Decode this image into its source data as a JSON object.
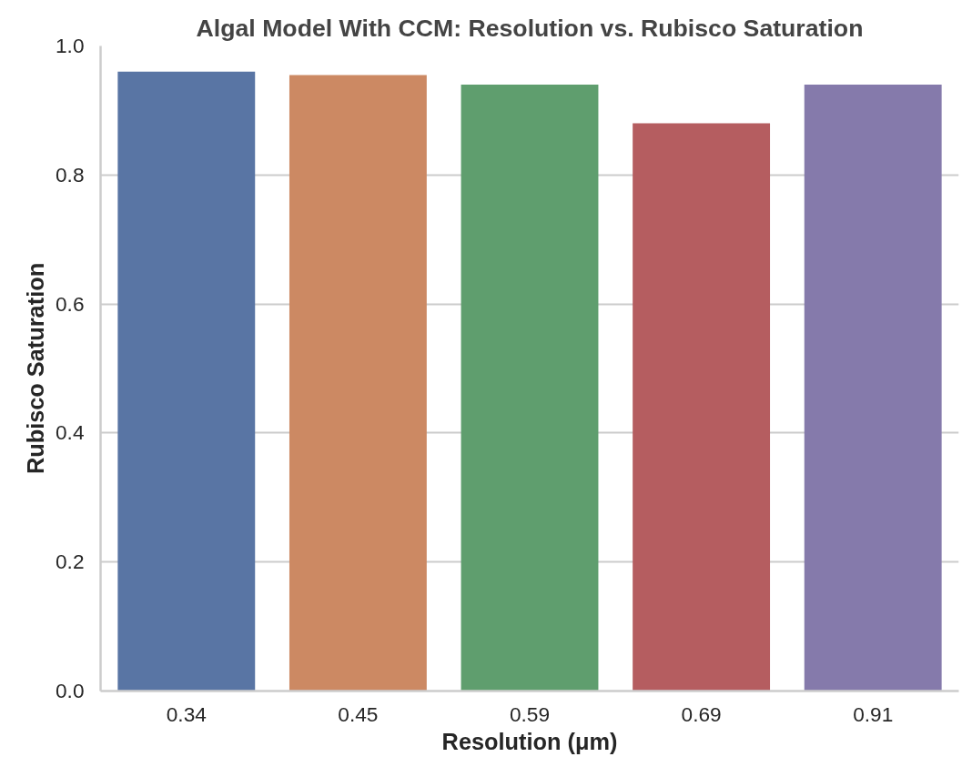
{
  "chart_data": {
    "type": "bar",
    "title": "Algal Model With CCM: Resolution vs. Rubisco Saturation",
    "xlabel": "Resolution (μm)",
    "ylabel": "Rubisco Saturation",
    "categories": [
      "0.34",
      "0.45",
      "0.59",
      "0.69",
      "0.91"
    ],
    "values": [
      0.96,
      0.955,
      0.94,
      0.88,
      0.94
    ],
    "colors": [
      "#5975a4",
      "#cc8963",
      "#5f9e6e",
      "#b55d60",
      "#857aab"
    ],
    "ylim": [
      0,
      1.0
    ],
    "yticks": [
      {
        "value": 0,
        "label": "0.0"
      },
      0.2,
      0.4,
      0.6,
      0.8,
      {
        "value": 1.0,
        "label": "1.0"
      }
    ],
    "grid": "y"
  }
}
